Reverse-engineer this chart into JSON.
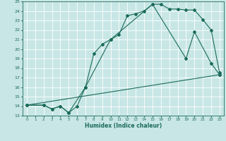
{
  "xlabel": "Humidex (Indice chaleur)",
  "bg_color": "#c8e6e6",
  "grid_color": "#ffffff",
  "line_color": "#1a6b5a",
  "xlim": [
    -0.5,
    23.5
  ],
  "ylim": [
    13,
    25
  ],
  "line1_x": [
    0,
    2,
    3,
    4,
    5,
    6,
    7,
    8,
    9,
    10,
    11,
    12,
    13,
    14,
    15,
    16,
    17,
    18,
    19,
    20,
    21,
    22,
    23
  ],
  "line1_y": [
    14.1,
    14.1,
    13.7,
    14.0,
    13.3,
    14.0,
    16.0,
    19.5,
    20.5,
    21.0,
    21.5,
    23.5,
    23.7,
    24.0,
    24.7,
    24.7,
    24.2,
    24.2,
    24.1,
    24.1,
    23.1,
    22.0,
    17.5
  ],
  "line2_x": [
    0,
    2,
    3,
    4,
    5,
    7,
    10,
    15,
    19,
    20,
    22,
    23
  ],
  "line2_y": [
    14.1,
    14.1,
    13.7,
    14.0,
    13.3,
    16.0,
    21.0,
    24.7,
    19.0,
    21.8,
    18.5,
    17.3
  ],
  "line3_x": [
    0,
    23
  ],
  "line3_y": [
    14.1,
    17.3
  ],
  "xticks": [
    0,
    1,
    2,
    3,
    4,
    5,
    6,
    7,
    8,
    9,
    10,
    11,
    12,
    13,
    14,
    15,
    16,
    17,
    18,
    19,
    20,
    21,
    22,
    23
  ],
  "yticks": [
    13,
    14,
    15,
    16,
    17,
    18,
    19,
    20,
    21,
    22,
    23,
    24,
    25
  ]
}
